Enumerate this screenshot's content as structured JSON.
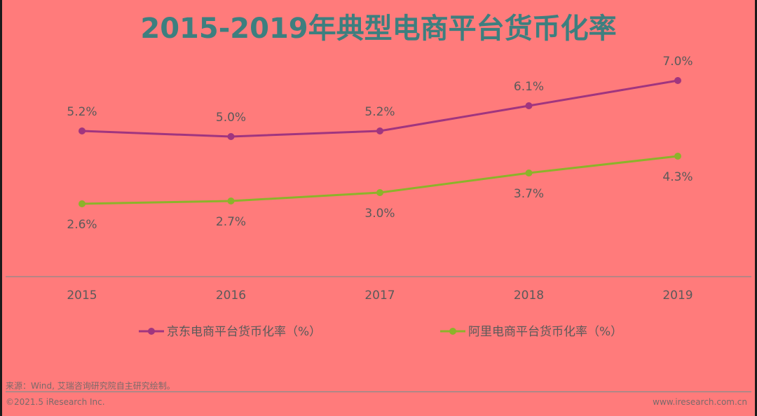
{
  "title": "2015-2019年典型电商平台货币化率",
  "chart_data": {
    "type": "line",
    "title": "2015-2019年典型电商平台货币化率",
    "categories": [
      "2015",
      "2016",
      "2017",
      "2018",
      "2019"
    ],
    "x": [
      "2015",
      "2016",
      "2017",
      "2018",
      "2019"
    ],
    "ylim": [
      0,
      9
    ],
    "grid": false,
    "legend_position": "bottom",
    "series": [
      {
        "name": "京东电商平台货币化率（%）",
        "values": [
          5.2,
          5.0,
          5.2,
          6.1,
          7.0
        ],
        "labels": [
          "5.2%",
          "5.0%",
          "5.2%",
          "6.1%",
          "7.0%"
        ],
        "label_position": "above",
        "color": "#a0357f"
      },
      {
        "name": "阿里电商平台货币化率（%）",
        "values": [
          2.6,
          2.7,
          3.0,
          3.7,
          4.3
        ],
        "labels": [
          "2.6%",
          "2.7%",
          "3.0%",
          "3.7%",
          "4.3%"
        ],
        "label_position": "below",
        "color": "#8cb32a"
      }
    ]
  },
  "footer": {
    "source": "来源：Wind, 艾瑞咨询研究院自主研究绘制。",
    "copyright": "©2021.5 iResearch Inc.",
    "website": "www.iresearch.com.cn"
  }
}
